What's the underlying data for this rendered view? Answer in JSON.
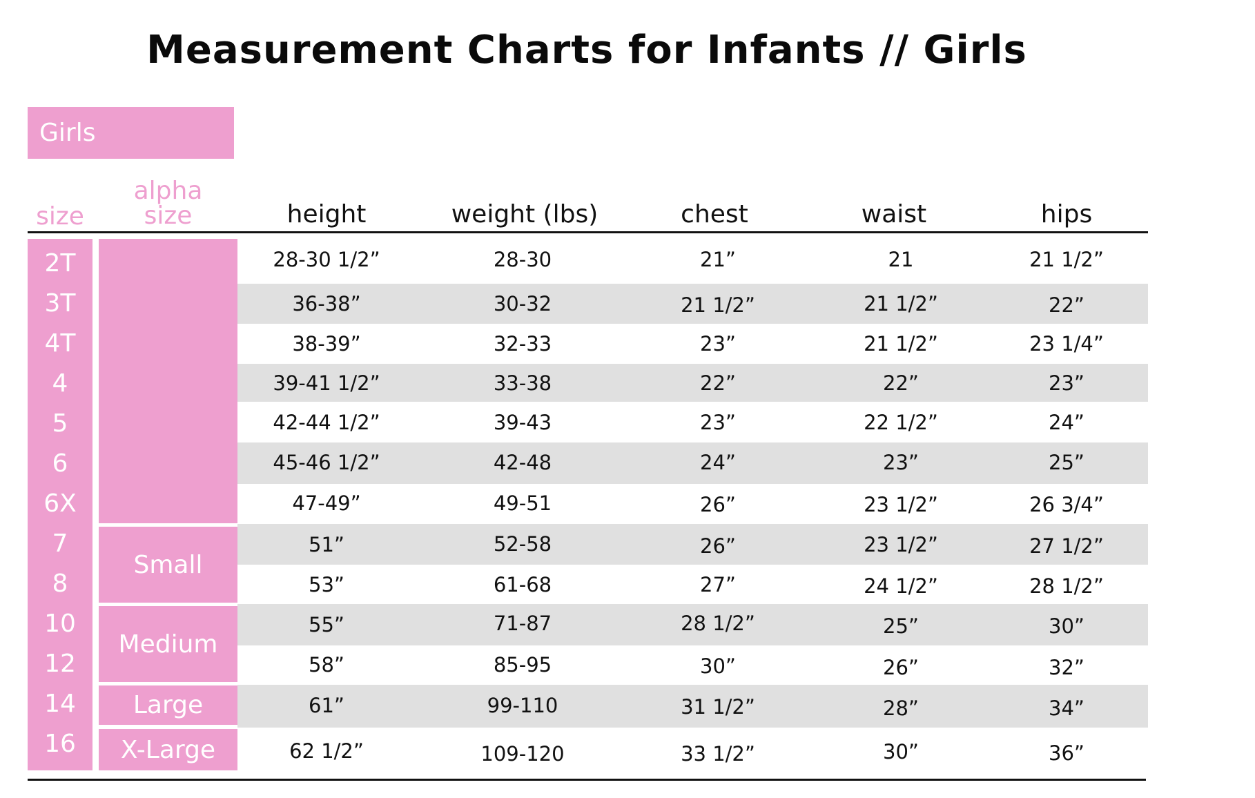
{
  "title": "Measurement Charts for Infants // Girls",
  "section_label": "Girls",
  "headers": {
    "size": "size",
    "alpha_size_line1": "alpha",
    "alpha_size_line2": "size",
    "height": "height",
    "weight": "weight (lbs)",
    "chest": "chest",
    "waist": "waist",
    "hips": "hips"
  },
  "alpha_groups": [
    {
      "label": ""
    },
    {
      "label": "Small"
    },
    {
      "label": "Medium"
    },
    {
      "label": "Large"
    },
    {
      "label": "X-Large"
    }
  ],
  "rows": [
    {
      "size": "2T",
      "height": "28-30 1/2”",
      "weight": "28-30",
      "chest": "21”",
      "waist": "21",
      "hips": "21 1/2”"
    },
    {
      "size": "3T",
      "height": "36-38”",
      "weight": "30-32",
      "chest": "21 1/2”",
      "waist": "21 1/2”",
      "hips": "22”"
    },
    {
      "size": "4T",
      "height": "38-39”",
      "weight": "32-33",
      "chest": "23”",
      "waist": "21 1/2”",
      "hips": "23 1/4”"
    },
    {
      "size": "4",
      "height": "39-41 1/2”",
      "weight": "33-38",
      "chest": "22”",
      "waist": "22”",
      "hips": "23”"
    },
    {
      "size": "5",
      "height": "42-44 1/2”",
      "weight": "39-43",
      "chest": "23”",
      "waist": "22 1/2”",
      "hips": "24”"
    },
    {
      "size": "6",
      "height": "45-46 1/2”",
      "weight": "42-48",
      "chest": "24”",
      "waist": "23”",
      "hips": "25”"
    },
    {
      "size": "6X",
      "height": "47-49”",
      "weight": "49-51",
      "chest": "26”",
      "waist": "23 1/2”",
      "hips": "26 3/4”"
    },
    {
      "size": "7",
      "height": "51”",
      "weight": "52-58",
      "chest": "26”",
      "waist": "23 1/2”",
      "hips": "27 1/2”"
    },
    {
      "size": "8",
      "height": "53”",
      "weight": "61-68",
      "chest": "27”",
      "waist": "24 1/2”",
      "hips": "28 1/2”"
    },
    {
      "size": "10",
      "height": "55”",
      "weight": "71-87",
      "chest": "28 1/2”",
      "waist": "25”",
      "hips": "30”"
    },
    {
      "size": "12",
      "height": "58”",
      "weight": "85-95",
      "chest": "30”",
      "waist": "26”",
      "hips": "32”"
    },
    {
      "size": "14",
      "height": "61”",
      "weight": "99-110",
      "chest": "31 1/2”",
      "waist": "28”",
      "hips": "34”"
    },
    {
      "size": "16",
      "height": "62 1/2”",
      "weight": "109-120",
      "chest": "33 1/2”",
      "waist": "30”",
      "hips": "36”"
    }
  ],
  "colors": {
    "accent_pink": "#ee9fcf",
    "stripe_gray": "#e0e0e0"
  }
}
